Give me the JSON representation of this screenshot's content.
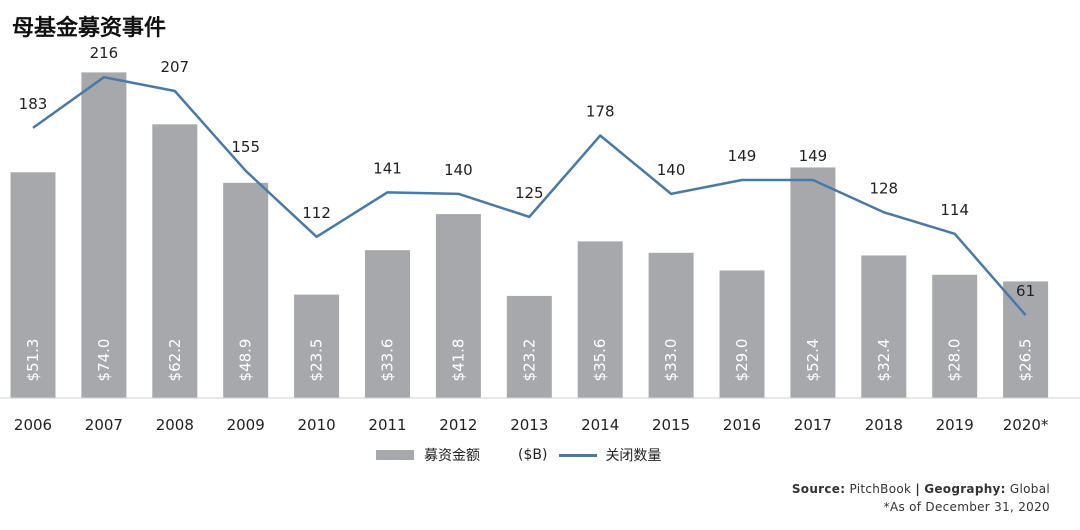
{
  "title": "母基金募资事件",
  "chart_data": {
    "type": "bar",
    "categories": [
      "2006",
      "2007",
      "2008",
      "2009",
      "2010",
      "2011",
      "2012",
      "2013",
      "2014",
      "2015",
      "2016",
      "2017",
      "2018",
      "2019",
      "2020*"
    ],
    "series": [
      {
        "name": "募资金额",
        "type": "bar",
        "color": "#a6a8ab",
        "values": [
          51.3,
          74.0,
          62.2,
          48.9,
          23.5,
          33.6,
          41.8,
          23.2,
          35.6,
          33.0,
          29.0,
          52.4,
          32.4,
          28.0,
          26.5
        ],
        "labels": [
          "$51.3",
          "$74.0",
          "$62.2",
          "$48.9",
          "$23.5",
          "$33.6",
          "$41.8",
          "$23.2",
          "$35.6",
          "$33.0",
          "$29.0",
          "$52.4",
          "$32.4",
          "$28.0",
          "$26.5"
        ]
      },
      {
        "name": "关闭数量",
        "type": "line",
        "color": "#4b79a5",
        "values": [
          183,
          216,
          207,
          155,
          112,
          141,
          140,
          125,
          178,
          140,
          149,
          149,
          128,
          114,
          61
        ]
      }
    ],
    "bar_ylim": [
      0,
      75
    ],
    "line_ylim": [
      0,
      250
    ]
  },
  "legend": {
    "bar_label": "募资金额",
    "unit": "($B)",
    "line_label": "关闭数量"
  },
  "source": {
    "label": "Source:",
    "value": "PitchBook",
    "sep": "|",
    "geo_label": "Geography:",
    "geo_value": "Global",
    "note": "*As of December 31, 2020"
  }
}
